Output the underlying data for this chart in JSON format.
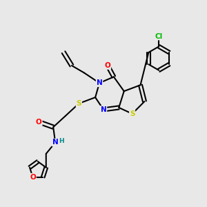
{
  "bg_color": "#e8e8e8",
  "bond_color": "#000000",
  "atom_colors": {
    "N": "#0000ff",
    "O": "#ff0000",
    "S": "#cccc00",
    "Cl": "#00bb00",
    "H": "#008888",
    "C": "#000000"
  }
}
